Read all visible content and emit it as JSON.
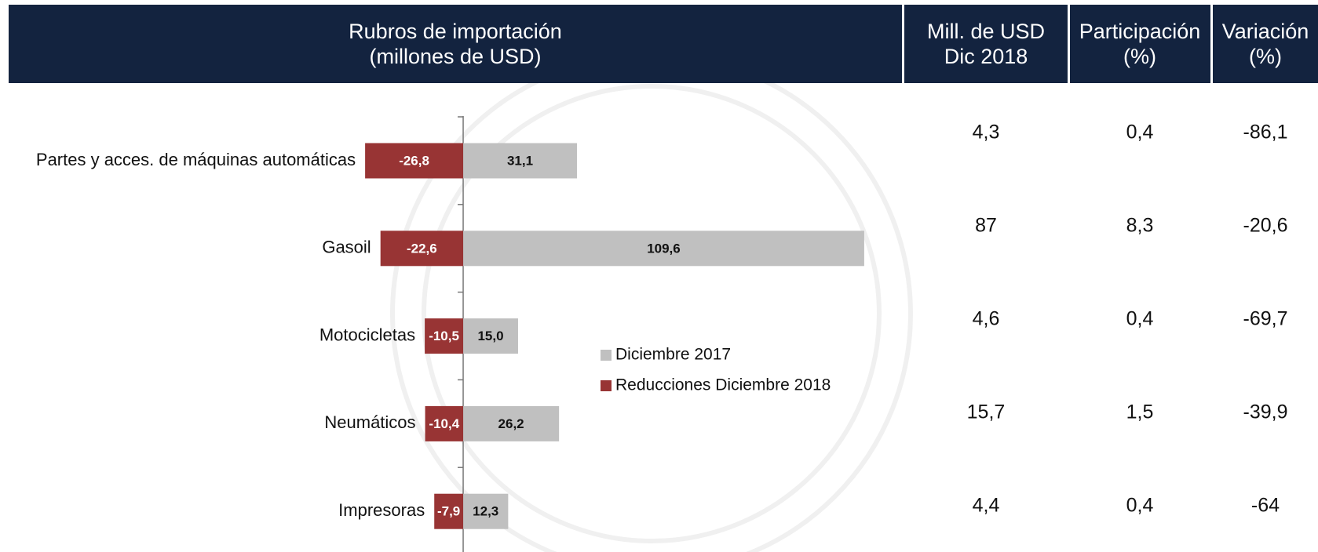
{
  "header": [
    "Rubros de importación\n(millones de USD)",
    "Mill. de USD\nDic 2018",
    "Participación\n(%)",
    "Variación\n(%)"
  ],
  "chart_data": {
    "type": "bar",
    "orientation": "horizontal",
    "categories": [
      "Partes y acces. de máquinas automáticas",
      "Gasoil",
      "Motocicletas",
      "Neumáticos",
      "Impresoras"
    ],
    "series": [
      {
        "name": "Diciembre 2017",
        "color": "#c0c0c0",
        "values": [
          31.1,
          109.6,
          15.0,
          26.2,
          12.3
        ],
        "value_labels": [
          "31,1",
          "109,6",
          "15,0",
          "26,2",
          "12,3"
        ]
      },
      {
        "name": "Reducciones Diciembre 2018",
        "color": "#983434",
        "values": [
          -26.8,
          -22.6,
          -10.5,
          -10.4,
          -7.9
        ],
        "value_labels": [
          "-26,8",
          "-22,6",
          "-10,5",
          "-10,4",
          "-7,9"
        ]
      }
    ],
    "xlim": [
      -30,
      130
    ]
  },
  "table": {
    "rows": [
      [
        "4,3",
        "0,4",
        "-86,1"
      ],
      [
        "87",
        "8,3",
        "-20,6"
      ],
      [
        "4,6",
        "0,4",
        "-69,7"
      ],
      [
        "15,7",
        "1,5",
        "-39,9"
      ],
      [
        "4,4",
        "0,4",
        "-64"
      ]
    ]
  }
}
